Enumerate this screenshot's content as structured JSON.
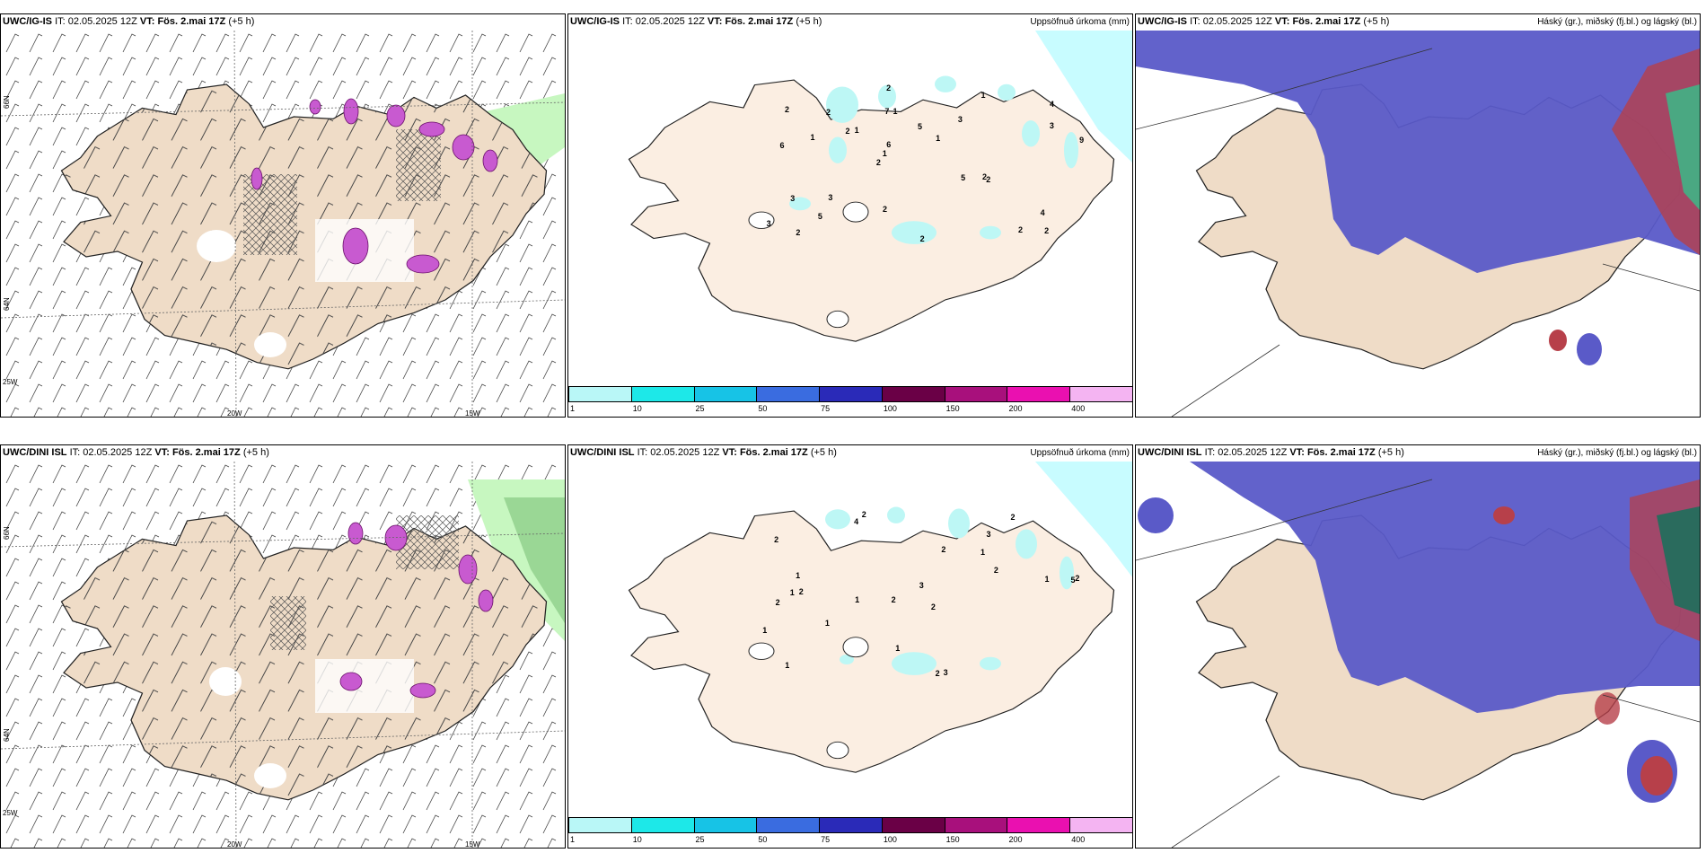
{
  "rows": [
    {
      "wind_panel": {
        "model": "UWC/IG-IS",
        "it_label": "IT:",
        "it": "02.05.2025 12Z",
        "vt_label": "VT:",
        "vt": "Fös. 2.mai 17Z",
        "step": "(+5 h)"
      },
      "precip_panel": {
        "model": "UWC/IG-IS",
        "it_label": "IT:",
        "it": "02.05.2025 12Z",
        "vt_label": "VT:",
        "vt": "Fös. 2.mai 17Z",
        "step": "(+5 h)",
        "right_title": "Uppsöfnuð úrkoma (mm)"
      },
      "cloud_panel": {
        "model": "UWC/IG-IS",
        "it_label": "IT:",
        "it": "02.05.2025 12Z",
        "vt_label": "VT:",
        "vt": "Fös. 2.mai 17Z",
        "step": "(+5 h)",
        "right_title": "Háský (gr.), miðský (fj.bl.) og lágský (bl.)"
      }
    },
    {
      "wind_panel": {
        "model": "UWC/DINI ISL",
        "it_label": "IT:",
        "it": "02.05.2025 12Z",
        "vt_label": "VT:",
        "vt": "Fös. 2.mai 17Z",
        "step": "(+5 h)"
      },
      "precip_panel": {
        "model": "UWC/DINI ISL",
        "it_label": "IT:",
        "it": "02.05.2025 12Z",
        "vt_label": "VT:",
        "vt": "Fös. 2.mai 17Z",
        "step": "(+5 h)",
        "right_title": "Uppsöfnuð úrkoma (mm)"
      },
      "cloud_panel": {
        "model": "UWC/DINI ISL",
        "it_label": "IT:",
        "it": "02.05.2025 12Z",
        "vt_label": "VT:",
        "vt": "Fös. 2.mai 17Z",
        "step": "(+5 h)",
        "right_title": "Háský (gr.), miðský (fj.bl.) og lágský (bl.)"
      }
    }
  ],
  "lon_labels": [
    "25W",
    "20W",
    "15W"
  ],
  "lat_labels": [
    "66N",
    "64N"
  ],
  "colorbar": {
    "ticks": [
      "1",
      "10",
      "25",
      "50",
      "75",
      "100",
      "150",
      "200",
      "400"
    ],
    "colors": [
      "#b9f7f7",
      "#1de8e8",
      "#17c3e6",
      "#3a6ce0",
      "#2a2ab8",
      "#6a0046",
      "#a8107c",
      "#ea10b0",
      "#f4b4f2"
    ]
  },
  "colors": {
    "land": "#efdcc7",
    "land_precip": "#fbeee2",
    "sea_ice": "#c8fcff",
    "high_cloud": "#5a5ac8",
    "mid_cloud": "#2f54d6",
    "low_cloud": "#b7404a",
    "wind_green": "#c7f7c0",
    "magenta": "#c85ad0",
    "precip_cyan": "#bdf7f5"
  },
  "precip_labels_top": [
    "2",
    "6",
    "4",
    "2",
    "3",
    "2",
    "7",
    "5",
    "3",
    "1",
    "3",
    "5",
    "1",
    "1",
    "2",
    "2",
    "2",
    "9",
    "5",
    "3",
    "1",
    "2",
    "6",
    "2",
    "1",
    "3",
    "2",
    "4",
    "2",
    "2",
    "2",
    "1"
  ],
  "precip_labels_bottom": [
    "2",
    "3",
    "5",
    "2",
    "2",
    "2",
    "2",
    "1",
    "2",
    "2",
    "3",
    "1",
    "4",
    "1",
    "2",
    "3",
    "1",
    "2",
    "2",
    "1",
    "1",
    "1",
    "2",
    "1",
    "1"
  ]
}
